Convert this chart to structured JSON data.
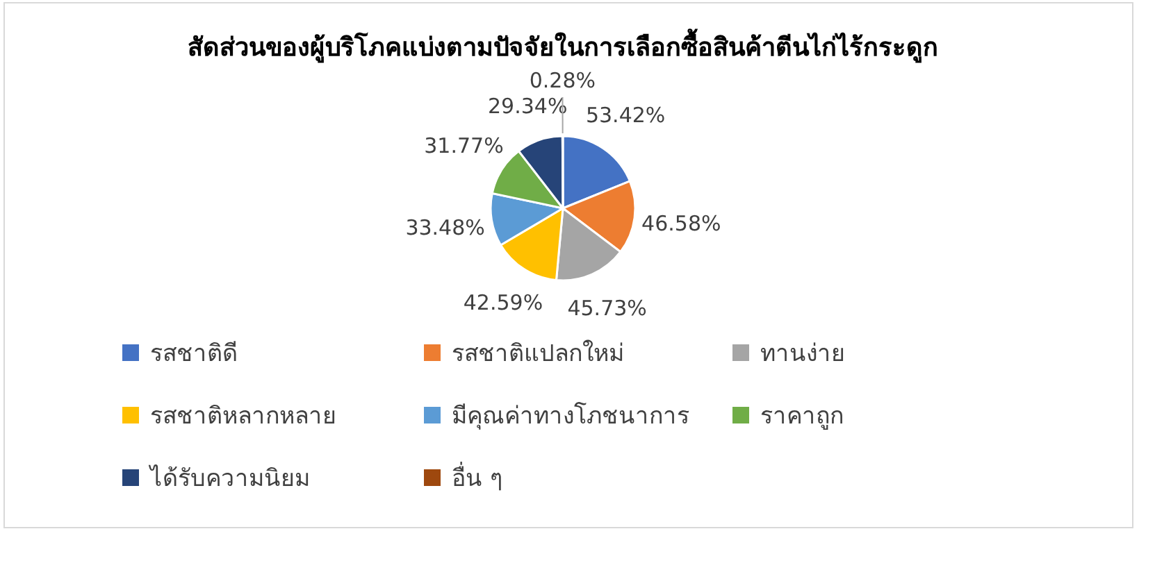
{
  "chart_data": {
    "type": "pie",
    "title": "สัดส่วนของผู้บริโภคแบ่งตามปัจจัยในการเลือกซื้อสินค้าตีนไก่ไร้กระดูก",
    "categories": [
      "รสชาติดี",
      "รสชาติแปลกใหม่",
      "ทานง่าย",
      "รสชาติหลากหลาย",
      "มีคุณค่าทางโภชนาการ",
      "ราคาถูก",
      "ได้รับความนิยม",
      "อื่น ๆ"
    ],
    "values": [
      53.42,
      46.58,
      45.73,
      42.59,
      33.48,
      31.77,
      29.34,
      0.28
    ],
    "colors": [
      "#4472c4",
      "#ed7d31",
      "#a5a5a5",
      "#ffc000",
      "#5b9bd5",
      "#70ad47",
      "#264478",
      "#9e480e"
    ],
    "value_labels": [
      "53.42%",
      "46.58%",
      "45.73%",
      "42.59%",
      "33.48%",
      "31.77%",
      "29.34%",
      "0.28%"
    ],
    "legend": "bottom"
  }
}
